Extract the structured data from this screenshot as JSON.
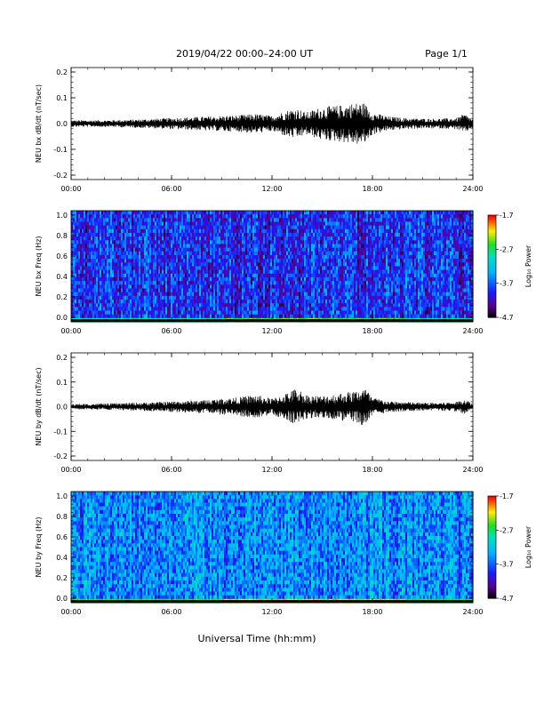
{
  "header": {
    "title": "2019/04/22  00:00–24:00 UT",
    "page": "Page 1/1"
  },
  "footer": {
    "xlabel": "Universal Time (hh:mm)"
  },
  "colorbar": {
    "label": "Log₁₀ Power",
    "range": [
      -4.7,
      -1.7
    ],
    "ticks": [
      "-1.7",
      "-2.7",
      "-3.7",
      "-4.7"
    ]
  },
  "chart_data": [
    {
      "type": "line",
      "panel": "waveform",
      "ylabel": "NEU bx dB/dt (nT/sec)",
      "xlim": [
        0,
        24
      ],
      "ylim": [
        -0.2,
        0.2
      ],
      "xticks": [
        "00:00",
        "06:00",
        "12:00",
        "18:00",
        "24:00"
      ],
      "yticks": [
        "0.2",
        "0.1",
        "0.0",
        "-0.1",
        "-0.2"
      ],
      "envelope": {
        "hours": [
          0,
          2,
          4,
          6,
          8,
          10,
          11,
          12,
          13,
          13.5,
          14,
          15,
          16,
          17,
          17.5,
          18,
          19,
          20,
          21,
          22,
          23,
          23.5,
          24
        ],
        "amplitude": [
          0.012,
          0.012,
          0.015,
          0.02,
          0.025,
          0.03,
          0.035,
          0.028,
          0.05,
          0.055,
          0.04,
          0.06,
          0.065,
          0.075,
          0.075,
          0.04,
          0.025,
          0.02,
          0.018,
          0.018,
          0.02,
          0.035,
          0.015
        ]
      }
    },
    {
      "type": "heatmap",
      "panel": "spectrogram",
      "ylabel": "NEU bx Freq (Hz)",
      "xlim": [
        0,
        24
      ],
      "ylim": [
        0,
        1.0
      ],
      "xticks": [
        "00:00",
        "06:00",
        "12:00",
        "18:00",
        "24:00"
      ],
      "yticks": [
        "1.0",
        "0.8",
        "0.6",
        "0.4",
        "0.2",
        "0.0"
      ],
      "background_log_power": -3.9,
      "low_freq_band": {
        "freq_max": 0.05,
        "log_power": -2.9
      }
    },
    {
      "type": "line",
      "panel": "waveform",
      "ylabel": "NEU by dB/dt (nT/sec)",
      "xlim": [
        0,
        24
      ],
      "ylim": [
        -0.2,
        0.2
      ],
      "xticks": [
        "00:00",
        "06:00",
        "12:00",
        "18:00",
        "24:00"
      ],
      "yticks": [
        "0.2",
        "0.1",
        "0.0",
        "-0.1",
        "-0.2"
      ],
      "envelope": {
        "hours": [
          0,
          2,
          4,
          6,
          8,
          10,
          11,
          12,
          13,
          13.5,
          14,
          15,
          16,
          17,
          17.5,
          18,
          19,
          20,
          21,
          22,
          23,
          23.5,
          24
        ],
        "amplitude": [
          0.01,
          0.012,
          0.015,
          0.02,
          0.025,
          0.035,
          0.045,
          0.03,
          0.055,
          0.07,
          0.045,
          0.04,
          0.05,
          0.06,
          0.075,
          0.035,
          0.02,
          0.018,
          0.015,
          0.015,
          0.018,
          0.03,
          0.012
        ]
      }
    },
    {
      "type": "heatmap",
      "panel": "spectrogram",
      "ylabel": "NEU by Freq (Hz)",
      "xlim": [
        0,
        24
      ],
      "ylim": [
        0,
        1.0
      ],
      "xticks": [
        "00:00",
        "06:00",
        "12:00",
        "18:00",
        "24:00"
      ],
      "yticks": [
        "1.0",
        "0.8",
        "0.6",
        "0.4",
        "0.2",
        "0.0"
      ],
      "background_log_power": -3.5,
      "low_freq_band": {
        "freq_max": 0.05,
        "log_power": -2.6
      }
    }
  ]
}
